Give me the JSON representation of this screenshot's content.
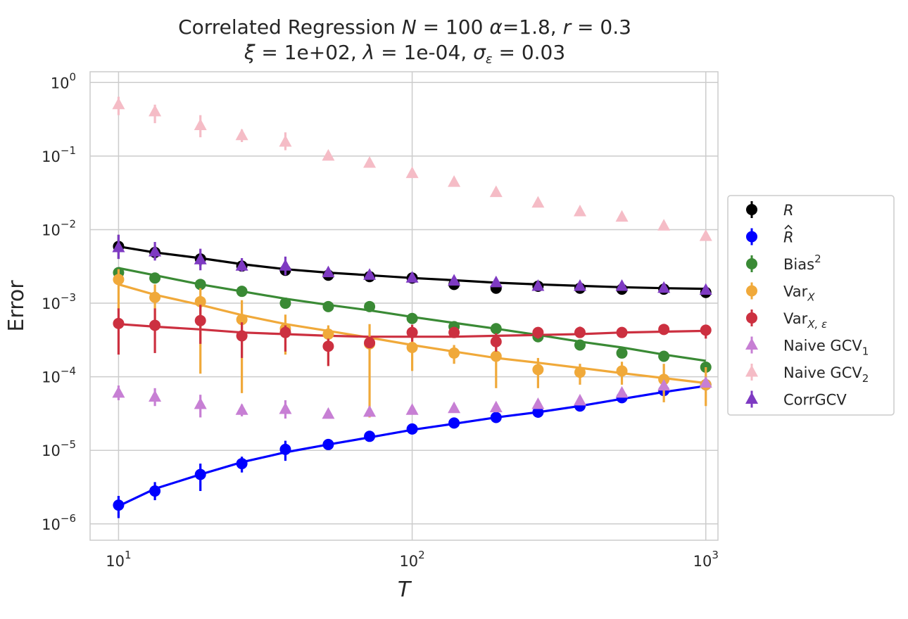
{
  "chart_data": {
    "type": "scatter",
    "title_line1": {
      "prefix": "Correlated Regression ",
      "N_sym": "N",
      "N_val": " = 100 ",
      "alpha_sym": "α",
      "alpha_val": "=1.8, ",
      "r_sym": "r",
      "r_val": " = 0.3"
    },
    "title_line2": {
      "xi_sym": "ξ",
      "xi_val": " = 1e+02, ",
      "lambda_sym": "λ",
      "lambda_val": " = 1e-04, ",
      "sigma_sym": "σ",
      "sigma_sub": "ε",
      "sigma_val": " = 0.03"
    },
    "xlabel": "T",
    "ylabel": "Error",
    "xscale": "log",
    "yscale": "log",
    "xlim": [
      8,
      1100
    ],
    "ylim": [
      6e-07,
      1.4
    ],
    "x_ticks": [
      {
        "value": 10,
        "base": "10",
        "exp": "1"
      },
      {
        "value": 100,
        "base": "10",
        "exp": "2"
      },
      {
        "value": 1000,
        "base": "10",
        "exp": "3"
      }
    ],
    "y_ticks": [
      {
        "value": 1e-06,
        "base": "10",
        "exp": "−6"
      },
      {
        "value": 1e-05,
        "base": "10",
        "exp": "−5"
      },
      {
        "value": 0.0001,
        "base": "10",
        "exp": "−4"
      },
      {
        "value": 0.001,
        "base": "10",
        "exp": "−3"
      },
      {
        "value": 0.01,
        "base": "10",
        "exp": "−2"
      },
      {
        "value": 0.1,
        "base": "10",
        "exp": "−1"
      },
      {
        "value": 1,
        "base": "10",
        "exp": "0"
      }
    ],
    "grid": true,
    "legend_position": "right-outside",
    "x": [
      10,
      13.3,
      19.0,
      26.3,
      37.0,
      51.8,
      71.6,
      100,
      138.9,
      193.1,
      268.3,
      372.8,
      517.9,
      719.7,
      1000
    ],
    "series": [
      {
        "key": "R",
        "label_main": "R",
        "label_sub": "",
        "label_sup": "",
        "label_style": "italic-R",
        "marker": "circle",
        "color": "#000000",
        "fit": true,
        "values": [
          0.0059,
          0.0049,
          0.004,
          0.0032,
          0.0028,
          0.0024,
          0.0023,
          0.0022,
          0.0018,
          0.0016,
          0.0017,
          0.0016,
          0.00155,
          0.00155,
          0.0014
        ],
        "err_low": [
          0.004,
          0.004,
          0.0032,
          0.0027,
          0.0024,
          0.0021,
          0.0021,
          0.002,
          0.0016,
          0.0015,
          0.0016,
          0.0015,
          0.00145,
          0.00145,
          0.0013
        ],
        "err_high": [
          0.0085,
          0.006,
          0.0048,
          0.0037,
          0.0032,
          0.0026,
          0.0025,
          0.0024,
          0.002,
          0.0018,
          0.0018,
          0.0017,
          0.00165,
          0.00165,
          0.0015
        ],
        "fit_values": [
          0.0059,
          0.0049,
          0.0041,
          0.0034,
          0.0029,
          0.0026,
          0.0024,
          0.0022,
          0.00205,
          0.0019,
          0.0018,
          0.00172,
          0.00165,
          0.0016,
          0.00157
        ]
      },
      {
        "key": "Rhat",
        "label_main": "R",
        "label_sub": "",
        "label_sup": "",
        "label_style": "italic-Rhat",
        "marker": "circle",
        "color": "#0000ff",
        "fit": true,
        "values": [
          1.8e-06,
          2.8e-06,
          4.7e-06,
          6.6e-06,
          1.03e-05,
          1.2e-05,
          1.55e-05,
          1.95e-05,
          2.35e-05,
          2.8e-05,
          3.3e-05,
          4e-05,
          5.2e-05,
          6.5e-05,
          7.8e-05
        ],
        "err_low": [
          1.2e-06,
          2.1e-06,
          2.8e-06,
          5e-06,
          7.2e-06,
          1.1e-05,
          1.45e-05,
          1.8e-05,
          2.05e-05,
          2.6e-05,
          3.1e-05,
          3.7e-05,
          4.8e-05,
          5.8e-05,
          7.3e-05
        ],
        "err_high": [
          2.4e-06,
          3.7e-06,
          6.6e-06,
          8.2e-06,
          1.35e-05,
          1.32e-05,
          1.65e-05,
          2.1e-05,
          2.7e-05,
          3e-05,
          3.5e-05,
          4.3e-05,
          5.6e-05,
          7.2e-05,
          8.3e-05
        ],
        "fit_values": [
          1.75e-06,
          3e-06,
          4.7e-06,
          6.9e-06,
          9.4e-06,
          1.2e-05,
          1.5e-05,
          1.9e-05,
          2.3e-05,
          2.8e-05,
          3.3e-05,
          4e-05,
          5e-05,
          6.2e-05,
          7.5e-05
        ]
      },
      {
        "key": "Bias2",
        "label_main": "Bias",
        "label_sub": "",
        "label_sup": "2",
        "label_style": "plain",
        "marker": "circle",
        "color": "#3a8a35",
        "fit": true,
        "values": [
          0.0026,
          0.0022,
          0.0018,
          0.00145,
          0.001,
          0.0009,
          0.0009,
          0.00062,
          0.00048,
          0.00045,
          0.00035,
          0.00027,
          0.00021,
          0.00019,
          0.000135
        ],
        "err_low": [
          0.0024,
          0.002,
          0.0016,
          0.0013,
          0.00095,
          0.00085,
          0.00085,
          0.00058,
          0.00045,
          0.00042,
          0.00032,
          0.00025,
          0.00019,
          0.00017,
          0.00012
        ],
        "err_high": [
          0.0028,
          0.0024,
          0.002,
          0.0016,
          0.00105,
          0.00095,
          0.00095,
          0.00066,
          0.00051,
          0.00048,
          0.00038,
          0.00029,
          0.00023,
          0.00021,
          0.00015
        ],
        "fit_values": [
          0.003,
          0.0024,
          0.0018,
          0.00145,
          0.00115,
          0.00095,
          0.0008,
          0.00065,
          0.00054,
          0.00045,
          0.00037,
          0.0003,
          0.00025,
          0.0002,
          0.000165
        ]
      },
      {
        "key": "VarX",
        "label_main": "Var",
        "label_sub": "X",
        "label_sup": "",
        "label_style": "plain",
        "marker": "circle",
        "color": "#f0a93a",
        "fit": true,
        "values": [
          0.0021,
          0.0012,
          0.00105,
          0.0006,
          0.00045,
          0.00038,
          0.00028,
          0.00025,
          0.00021,
          0.00019,
          0.000125,
          0.000115,
          0.00012,
          9.2e-05,
          7.8e-05
        ],
        "err_low": [
          0.0008,
          0.0006,
          0.00011,
          6e-05,
          0.0002,
          0.00014,
          2.8e-05,
          0.00012,
          0.00015,
          7e-05,
          7e-05,
          7.8e-05,
          7.8e-05,
          4.5e-05,
          4e-05
        ],
        "err_high": [
          0.0029,
          0.0018,
          0.0016,
          0.0011,
          0.0007,
          0.0005,
          0.00052,
          0.00038,
          0.00027,
          0.00028,
          0.00018,
          0.00015,
          0.00016,
          0.00015,
          0.000135
        ],
        "fit_values": [
          0.0018,
          0.0013,
          0.00095,
          0.00069,
          0.00052,
          0.00042,
          0.00034,
          0.00027,
          0.00022,
          0.00018,
          0.000155,
          0.000132,
          0.000112,
          9.6e-05,
          8.2e-05
        ]
      },
      {
        "key": "VarXeps",
        "label_main": "Var",
        "label_sub": "X, ε",
        "label_sup": "",
        "label_style": "plain",
        "marker": "circle",
        "color": "#cc3040",
        "fit": true,
        "values": [
          0.00053,
          0.0005,
          0.00058,
          0.00036,
          0.0004,
          0.00026,
          0.00029,
          0.0004,
          0.0004,
          0.0003,
          0.0004,
          0.0004,
          0.0004,
          0.00044,
          0.00043
        ],
        "err_low": [
          0.0002,
          0.00021,
          0.00028,
          0.00018,
          0.00022,
          0.00014,
          0.00026,
          0.0003,
          0.00036,
          0.00022,
          0.00033,
          0.00035,
          0.00036,
          0.0004,
          0.00033
        ],
        "err_high": [
          0.00085,
          0.00085,
          0.00095,
          0.00055,
          0.0005,
          0.00033,
          0.00035,
          0.00051,
          0.00044,
          0.00039,
          0.00047,
          0.00048,
          0.00045,
          0.00049,
          0.0005
        ],
        "fit_values": [
          0.00052,
          0.00048,
          0.00044,
          0.0004,
          0.00038,
          0.00036,
          0.00035,
          0.00035,
          0.00035,
          0.00036,
          0.00037,
          0.00038,
          0.0004,
          0.00041,
          0.00042
        ]
      },
      {
        "key": "NaiveGCV1",
        "label_main": "Naive GCV",
        "label_sub": "1",
        "label_sup": "",
        "label_style": "plain",
        "marker": "triangle",
        "color": "#c77fd4",
        "fit": false,
        "values": [
          6e-05,
          5.3e-05,
          4.2e-05,
          3.5e-05,
          3.6e-05,
          3.1e-05,
          3.3e-05,
          3.5e-05,
          3.7e-05,
          3.8e-05,
          4.2e-05,
          4.7e-05,
          6e-05,
          7.5e-05,
          8.2e-05
        ],
        "err_low": [
          4.8e-05,
          4e-05,
          2.8e-05,
          2.9e-05,
          2.7e-05,
          2.8e-05,
          2.9e-05,
          3.2e-05,
          3.4e-05,
          3.5e-05,
          3.8e-05,
          4.3e-05,
          5.5e-05,
          6.8e-05,
          7.5e-05
        ],
        "err_high": [
          7.6e-05,
          7e-05,
          5.7e-05,
          4.2e-05,
          4.8e-05,
          3.4e-05,
          3.6e-05,
          3.8e-05,
          4e-05,
          4.1e-05,
          4.6e-05,
          5.1e-05,
          6.5e-05,
          8.2e-05,
          8.9e-05
        ]
      },
      {
        "key": "NaiveGCV2",
        "label_main": "Naive GCV",
        "label_sub": "2",
        "label_sup": "",
        "label_style": "plain",
        "marker": "triangle",
        "color": "#f5bcc6",
        "fit": false,
        "values": [
          0.5,
          0.4,
          0.26,
          0.19,
          0.155,
          0.1,
          0.08,
          0.058,
          0.044,
          0.032,
          0.023,
          0.0175,
          0.0148,
          0.0112,
          0.0081
        ],
        "err_low": [
          0.36,
          0.28,
          0.18,
          0.155,
          0.12,
          0.093,
          0.075,
          0.055,
          0.04,
          0.03,
          0.0215,
          0.0165,
          0.014,
          0.0105,
          0.0076
        ],
        "err_high": [
          0.64,
          0.5,
          0.36,
          0.23,
          0.21,
          0.108,
          0.086,
          0.062,
          0.05,
          0.035,
          0.025,
          0.0186,
          0.0157,
          0.012,
          0.0087
        ]
      },
      {
        "key": "CorrGCV",
        "label_main": "CorrGCV",
        "label_sub": "",
        "label_sup": "",
        "label_style": "plain",
        "marker": "triangle",
        "color": "#7e3ac2",
        "fit": false,
        "values": [
          0.0057,
          0.005,
          0.0039,
          0.0032,
          0.0032,
          0.0026,
          0.0024,
          0.0022,
          0.002,
          0.0019,
          0.0017,
          0.0017,
          0.0017,
          0.0016,
          0.0015
        ],
        "err_low": [
          0.004,
          0.0038,
          0.0028,
          0.0027,
          0.0024,
          0.0023,
          0.0022,
          0.002,
          0.0018,
          0.0017,
          0.0016,
          0.0016,
          0.0016,
          0.0015,
          0.0014
        ],
        "err_high": [
          0.0085,
          0.0068,
          0.0055,
          0.0041,
          0.0043,
          0.0029,
          0.0027,
          0.0024,
          0.0022,
          0.0021,
          0.0019,
          0.0018,
          0.0018,
          0.0017,
          0.0016
        ]
      }
    ]
  },
  "colors": {
    "grid": "#cccccc",
    "frame": "#cccccc",
    "text": "#262626",
    "legend_border": "#cccccc"
  }
}
